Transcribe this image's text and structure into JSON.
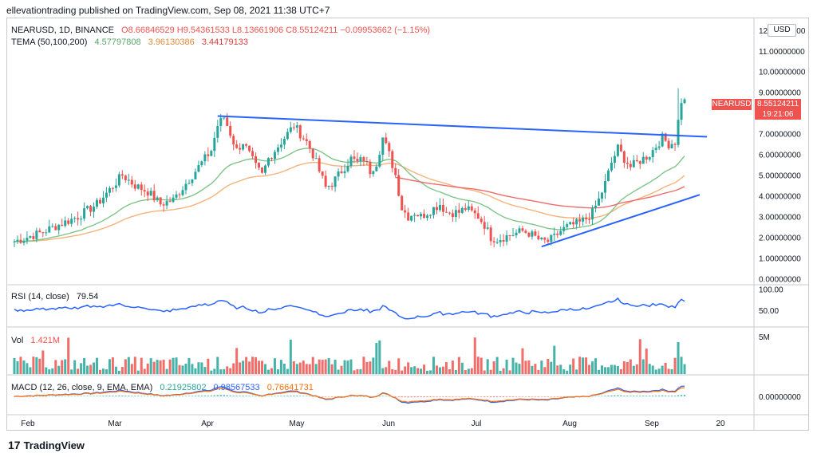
{
  "header": {
    "title": "ellevationtrading published on TradingView.com, Sep 08, 2021 11:38 UTC+7"
  },
  "legend": {
    "symbol": "NEARUSD, 1D, BINANCE",
    "ohlc": "O8.66846529  H9.54361533  L8.13661906  C8.55124211  −0.09953662 (−1.15%)",
    "tema_label": "TEMA (50,100,200)",
    "tema_values": [
      "4.57797808",
      "3.96130386",
      "3.44179133"
    ],
    "rsi_label": "RSI (14, close)",
    "rsi_value": "79.54",
    "vol_label": "Vol",
    "vol_value": "1.421M",
    "macd_label": "MACD (12, 26, close, 9, EMA, EMA)",
    "macd_values": [
      "0.21925802",
      "0.98567533",
      "0.76641731"
    ]
  },
  "badges": {
    "currency": "USD",
    "symbol_tag": "NEARUSD",
    "price": "8.55124211",
    "countdown": "19:21:06"
  },
  "footer": {
    "brand": "TradingView"
  },
  "colors": {
    "up": "#26a69a",
    "down": "#ef5350",
    "ema50": "#7fc58a",
    "ema100": "#f5b37a",
    "ema200": "#ef6b6b",
    "trend": "#2962ff",
    "rsi": "#2962ff"
  },
  "chart_data": {
    "type": "candlestick",
    "x_labels": [
      "Feb",
      "Mar",
      "Apr",
      "May",
      "Jun",
      "Jul",
      "Aug",
      "Sep",
      "20"
    ],
    "y_ticks": [
      "12.00000000",
      "11.00000000",
      "10.00000000",
      "9.00000000",
      "8.00000000",
      "7.00000000",
      "6.00000000",
      "5.00000000",
      "4.00000000",
      "3.00000000",
      "2.00000000",
      "1.00000000",
      "0.00000000"
    ],
    "ylim": [
      -0.1,
      12.3
    ],
    "rsi_ticks": [
      "100.00",
      "50.00"
    ],
    "vol_ticks": [
      "5M"
    ],
    "macd_ticks": [
      "0.00000000"
    ],
    "price_path": [
      [
        0,
        1.8
      ],
      [
        8,
        2.2
      ],
      [
        14,
        2.6
      ],
      [
        20,
        3.0
      ],
      [
        26,
        3.6
      ],
      [
        30,
        4.3
      ],
      [
        34,
        5.0
      ],
      [
        38,
        4.5
      ],
      [
        42,
        4.2
      ],
      [
        46,
        3.6
      ],
      [
        50,
        3.8
      ],
      [
        54,
        4.6
      ],
      [
        58,
        5.4
      ],
      [
        62,
        6.2
      ],
      [
        64,
        7.4
      ],
      [
        66,
        7.8
      ],
      [
        68,
        7.0
      ],
      [
        70,
        6.2
      ],
      [
        72,
        6.6
      ],
      [
        74,
        6.0
      ],
      [
        76,
        5.4
      ],
      [
        78,
        5.0
      ],
      [
        80,
        5.8
      ],
      [
        82,
        6.2
      ],
      [
        84,
        6.6
      ],
      [
        86,
        7.0
      ],
      [
        88,
        7.4
      ],
      [
        90,
        7.0
      ],
      [
        92,
        6.6
      ],
      [
        94,
        6.0
      ],
      [
        96,
        5.2
      ],
      [
        98,
        4.4
      ],
      [
        100,
        4.6
      ],
      [
        102,
        5.0
      ],
      [
        104,
        5.4
      ],
      [
        106,
        5.8
      ],
      [
        108,
        5.6
      ],
      [
        110,
        5.8
      ],
      [
        112,
        5.2
      ],
      [
        114,
        5.6
      ],
      [
        116,
        6.8
      ],
      [
        118,
        6.0
      ],
      [
        120,
        5.0
      ],
      [
        122,
        3.4
      ],
      [
        124,
        3.0
      ],
      [
        126,
        3.2
      ],
      [
        128,
        3.0
      ],
      [
        130,
        3.2
      ],
      [
        132,
        3.4
      ],
      [
        134,
        3.6
      ],
      [
        136,
        3.2
      ],
      [
        138,
        3.2
      ],
      [
        140,
        3.2
      ],
      [
        142,
        3.4
      ],
      [
        144,
        3.2
      ],
      [
        146,
        3.0
      ],
      [
        148,
        2.6
      ],
      [
        150,
        2.0
      ],
      [
        152,
        1.9
      ],
      [
        154,
        2.0
      ],
      [
        156,
        2.1
      ],
      [
        158,
        2.2
      ],
      [
        160,
        2.3
      ],
      [
        162,
        2.2
      ],
      [
        164,
        2.0
      ],
      [
        166,
        1.8
      ],
      [
        168,
        1.8
      ],
      [
        170,
        2.0
      ],
      [
        172,
        2.3
      ],
      [
        174,
        2.5
      ],
      [
        176,
        2.6
      ],
      [
        178,
        2.7
      ],
      [
        180,
        2.9
      ],
      [
        182,
        3.2
      ],
      [
        184,
        3.8
      ],
      [
        186,
        4.6
      ],
      [
        188,
        5.6
      ],
      [
        190,
        6.3
      ],
      [
        192,
        5.8
      ],
      [
        194,
        5.4
      ],
      [
        196,
        5.6
      ],
      [
        198,
        5.8
      ],
      [
        200,
        6.0
      ],
      [
        202,
        6.4
      ],
      [
        204,
        6.8
      ],
      [
        206,
        6.5
      ],
      [
        208,
        6.6
      ],
      [
        210,
        8.6
      ],
      [
        211,
        8.55
      ]
    ]
  }
}
